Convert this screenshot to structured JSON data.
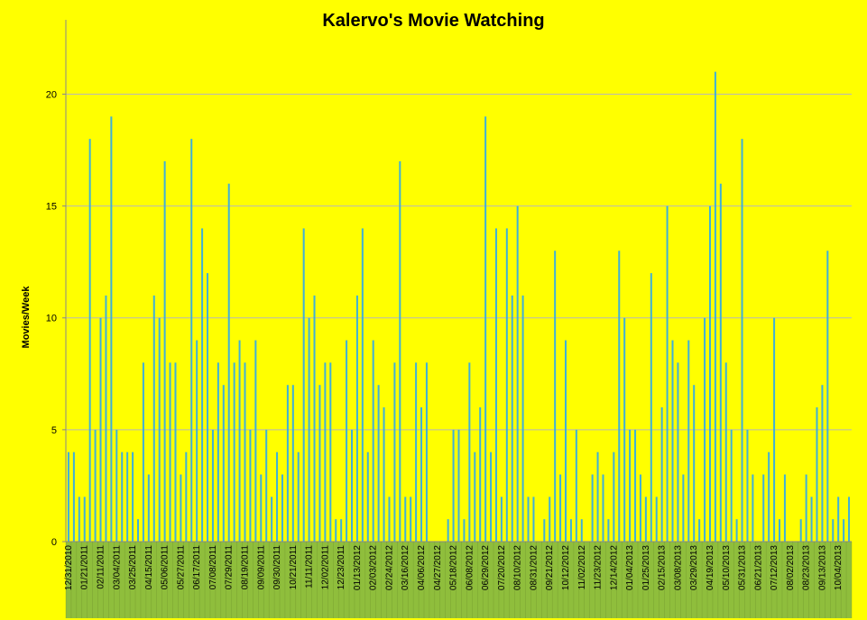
{
  "chart_data": {
    "type": "bar",
    "title": "Kalervo's Movie Watching",
    "xlabel": "",
    "ylabel": "Movies/Week",
    "ylim": [
      0,
      23
    ],
    "yticks": [
      0,
      5,
      10,
      15,
      20
    ],
    "grid": true,
    "legend": "none",
    "colors": {
      "background": "#ffff00",
      "bar": "#3fb0d8",
      "gridline": "#b8b8b8",
      "label_band": "#8fbe3c"
    },
    "tick_labels": [
      "12/31/2010",
      "01/21/2011",
      "02/11/2011",
      "03/04/2011",
      "03/25/2011",
      "04/15/2011",
      "05/06/2011",
      "05/27/2011",
      "06/17/2011",
      "07/08/2011",
      "07/29/2011",
      "08/19/2011",
      "09/09/2011",
      "09/30/2011",
      "10/21/2011",
      "11/11/2011",
      "12/02/2011",
      "12/23/2011",
      "01/13/2012",
      "02/03/2012",
      "02/24/2012",
      "03/16/2012",
      "04/06/2012",
      "04/27/2012",
      "05/18/2012",
      "06/08/2012",
      "06/29/2012",
      "07/20/2012",
      "08/10/2012",
      "08/31/2012",
      "09/21/2012",
      "10/12/2012",
      "11/02/2012",
      "11/23/2012",
      "12/14/2012",
      "01/04/2013",
      "01/25/2013",
      "02/15/2013",
      "03/08/2013",
      "03/29/2013",
      "04/19/2013",
      "05/10/2013",
      "05/31/2013",
      "06/21/2013",
      "07/12/2013",
      "08/02/2013",
      "08/23/2013",
      "09/13/2013",
      "10/04/2013"
    ],
    "values": [
      4,
      4,
      2,
      2,
      18,
      5,
      10,
      11,
      19,
      5,
      4,
      4,
      4,
      1,
      8,
      3,
      11,
      10,
      17,
      8,
      8,
      3,
      4,
      18,
      9,
      14,
      12,
      5,
      8,
      7,
      16,
      8,
      9,
      8,
      5,
      9,
      3,
      5,
      2,
      4,
      3,
      7,
      7,
      4,
      14,
      10,
      11,
      7,
      8,
      8,
      1,
      1,
      9,
      5,
      11,
      14,
      4,
      9,
      7,
      6,
      2,
      8,
      17,
      2,
      2,
      8,
      6,
      8,
      0,
      0,
      0,
      1,
      5,
      5,
      1,
      8,
      4,
      6,
      19,
      4,
      14,
      2,
      14,
      11,
      15,
      11,
      2,
      2,
      0,
      1,
      2,
      13,
      3,
      9,
      1,
      5,
      1,
      0,
      3,
      4,
      3,
      1,
      4,
      13,
      10,
      5,
      5,
      3,
      2,
      12,
      2,
      6,
      15,
      9,
      8,
      3,
      9,
      7,
      1,
      10,
      15,
      21,
      16,
      8,
      5,
      1,
      18,
      5,
      3,
      0,
      3,
      4,
      10,
      1,
      3,
      0,
      0,
      1,
      3,
      2,
      6,
      7,
      13,
      1,
      2,
      1,
      2
    ]
  }
}
